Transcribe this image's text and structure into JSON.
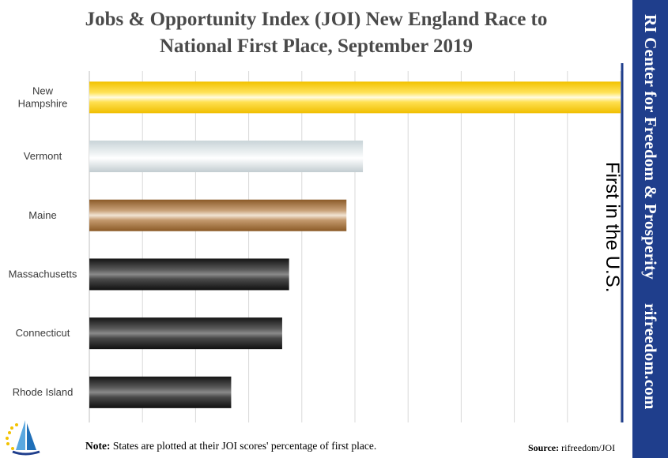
{
  "title_lines": [
    "Jobs & Opportunity Index (JOI) New England Race to",
    "National First Place, September 2019"
  ],
  "side_banner": {
    "org": "RI Center for Freedom & Prosperity",
    "site": "rifreedom.com",
    "color": "#1f3e8c"
  },
  "first_place_label": "First in the U.S.",
  "note": {
    "label": "Note:",
    "text": " States are plotted at their JOI scores' percentage of first place."
  },
  "source": {
    "label": "Source:",
    "text": " rifreedom/JOI"
  },
  "logo_icon": "sailboat-stars-logo-icon",
  "chart_data": {
    "type": "bar",
    "orientation": "horizontal",
    "categories": [
      "New Hampshire",
      "Vermont",
      "Maine",
      "Massachusetts",
      "Connecticut",
      "Rhode Island"
    ],
    "category_label_lines": [
      [
        "New",
        "Hampshire"
      ],
      [
        "Vermont"
      ],
      [
        "Maine"
      ],
      [
        "Massachusetts"
      ],
      [
        "Connecticut"
      ],
      [
        "Rhode Island"
      ]
    ],
    "values": [
      100,
      51.5,
      48.4,
      37.6,
      36.3,
      26.7
    ],
    "xlim": [
      0,
      100
    ],
    "grid": true,
    "bar_colors": [
      "gold",
      "silver",
      "bronze",
      "black",
      "black",
      "black"
    ],
    "first_place_line_color": "#1f3e8c"
  }
}
